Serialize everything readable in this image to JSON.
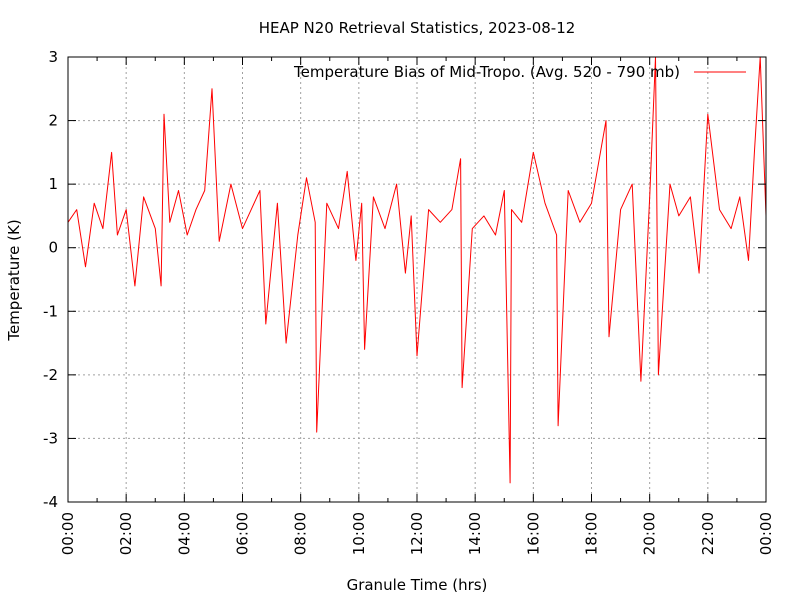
{
  "chart_data": {
    "type": "line",
    "title": "HEAP N20 Retrieval Statistics, 2023-08-12",
    "xlabel": "Granule Time (hrs)",
    "ylabel": "Temperature (K)",
    "xlim": [
      0,
      24
    ],
    "ylim": [
      -4,
      3
    ],
    "x_ticks": [
      "00:00",
      "02:00",
      "04:00",
      "06:00",
      "08:00",
      "10:00",
      "12:00",
      "14:00",
      "16:00",
      "18:00",
      "20:00",
      "22:00",
      "00:00"
    ],
    "y_ticks": [
      "3",
      "2",
      "1",
      "0",
      "-1",
      "-2",
      "-3",
      "-4"
    ],
    "grid": true,
    "legend_position": "top-right",
    "series": [
      {
        "name": "Temperature Bias of Mid-Tropo. (Avg. 520 - 790 mb)",
        "color": "#ff0000",
        "x": [
          0.0,
          0.3,
          0.6,
          0.9,
          1.2,
          1.5,
          1.7,
          2.0,
          2.3,
          2.6,
          3.0,
          3.2,
          3.3,
          3.5,
          3.8,
          4.1,
          4.4,
          4.7,
          4.95,
          5.2,
          5.6,
          6.0,
          6.3,
          6.6,
          6.8,
          7.2,
          7.5,
          7.9,
          8.2,
          8.5,
          8.55,
          8.9,
          9.3,
          9.6,
          9.9,
          10.1,
          10.2,
          10.5,
          10.9,
          11.3,
          11.6,
          11.8,
          12.0,
          12.4,
          12.8,
          13.2,
          13.5,
          13.55,
          13.9,
          14.3,
          14.7,
          15.0,
          15.2,
          15.25,
          15.6,
          16.0,
          16.4,
          16.8,
          16.85,
          17.2,
          17.6,
          18.0,
          18.5,
          18.6,
          19.0,
          19.4,
          19.7,
          20.0,
          20.2,
          20.3,
          20.7,
          21.0,
          21.4,
          21.7,
          22.0,
          22.4,
          22.8,
          23.1,
          23.4,
          23.6,
          23.8,
          24.0
        ],
        "values": [
          0.4,
          0.6,
          -0.3,
          0.7,
          0.3,
          1.5,
          0.2,
          0.6,
          -0.6,
          0.8,
          0.3,
          -0.6,
          2.1,
          0.4,
          0.9,
          0.2,
          0.6,
          0.9,
          2.5,
          0.1,
          1.0,
          0.3,
          0.6,
          0.9,
          -1.2,
          0.7,
          -1.5,
          0.2,
          1.1,
          0.4,
          -2.9,
          0.7,
          0.3,
          1.2,
          -0.2,
          0.7,
          -1.6,
          0.8,
          0.3,
          1.0,
          -0.4,
          0.5,
          -1.7,
          0.6,
          0.4,
          0.6,
          1.4,
          -2.2,
          0.3,
          0.5,
          0.2,
          0.9,
          -3.7,
          0.6,
          0.4,
          1.5,
          0.7,
          0.2,
          -2.8,
          0.9,
          0.4,
          0.7,
          2.0,
          -1.4,
          0.6,
          1.0,
          -2.1,
          0.8,
          3.0,
          -2.0,
          1.0,
          0.5,
          0.8,
          -0.4,
          2.1,
          0.6,
          0.3,
          0.8,
          -0.2,
          1.5,
          3.0,
          0.5
        ]
      }
    ]
  }
}
